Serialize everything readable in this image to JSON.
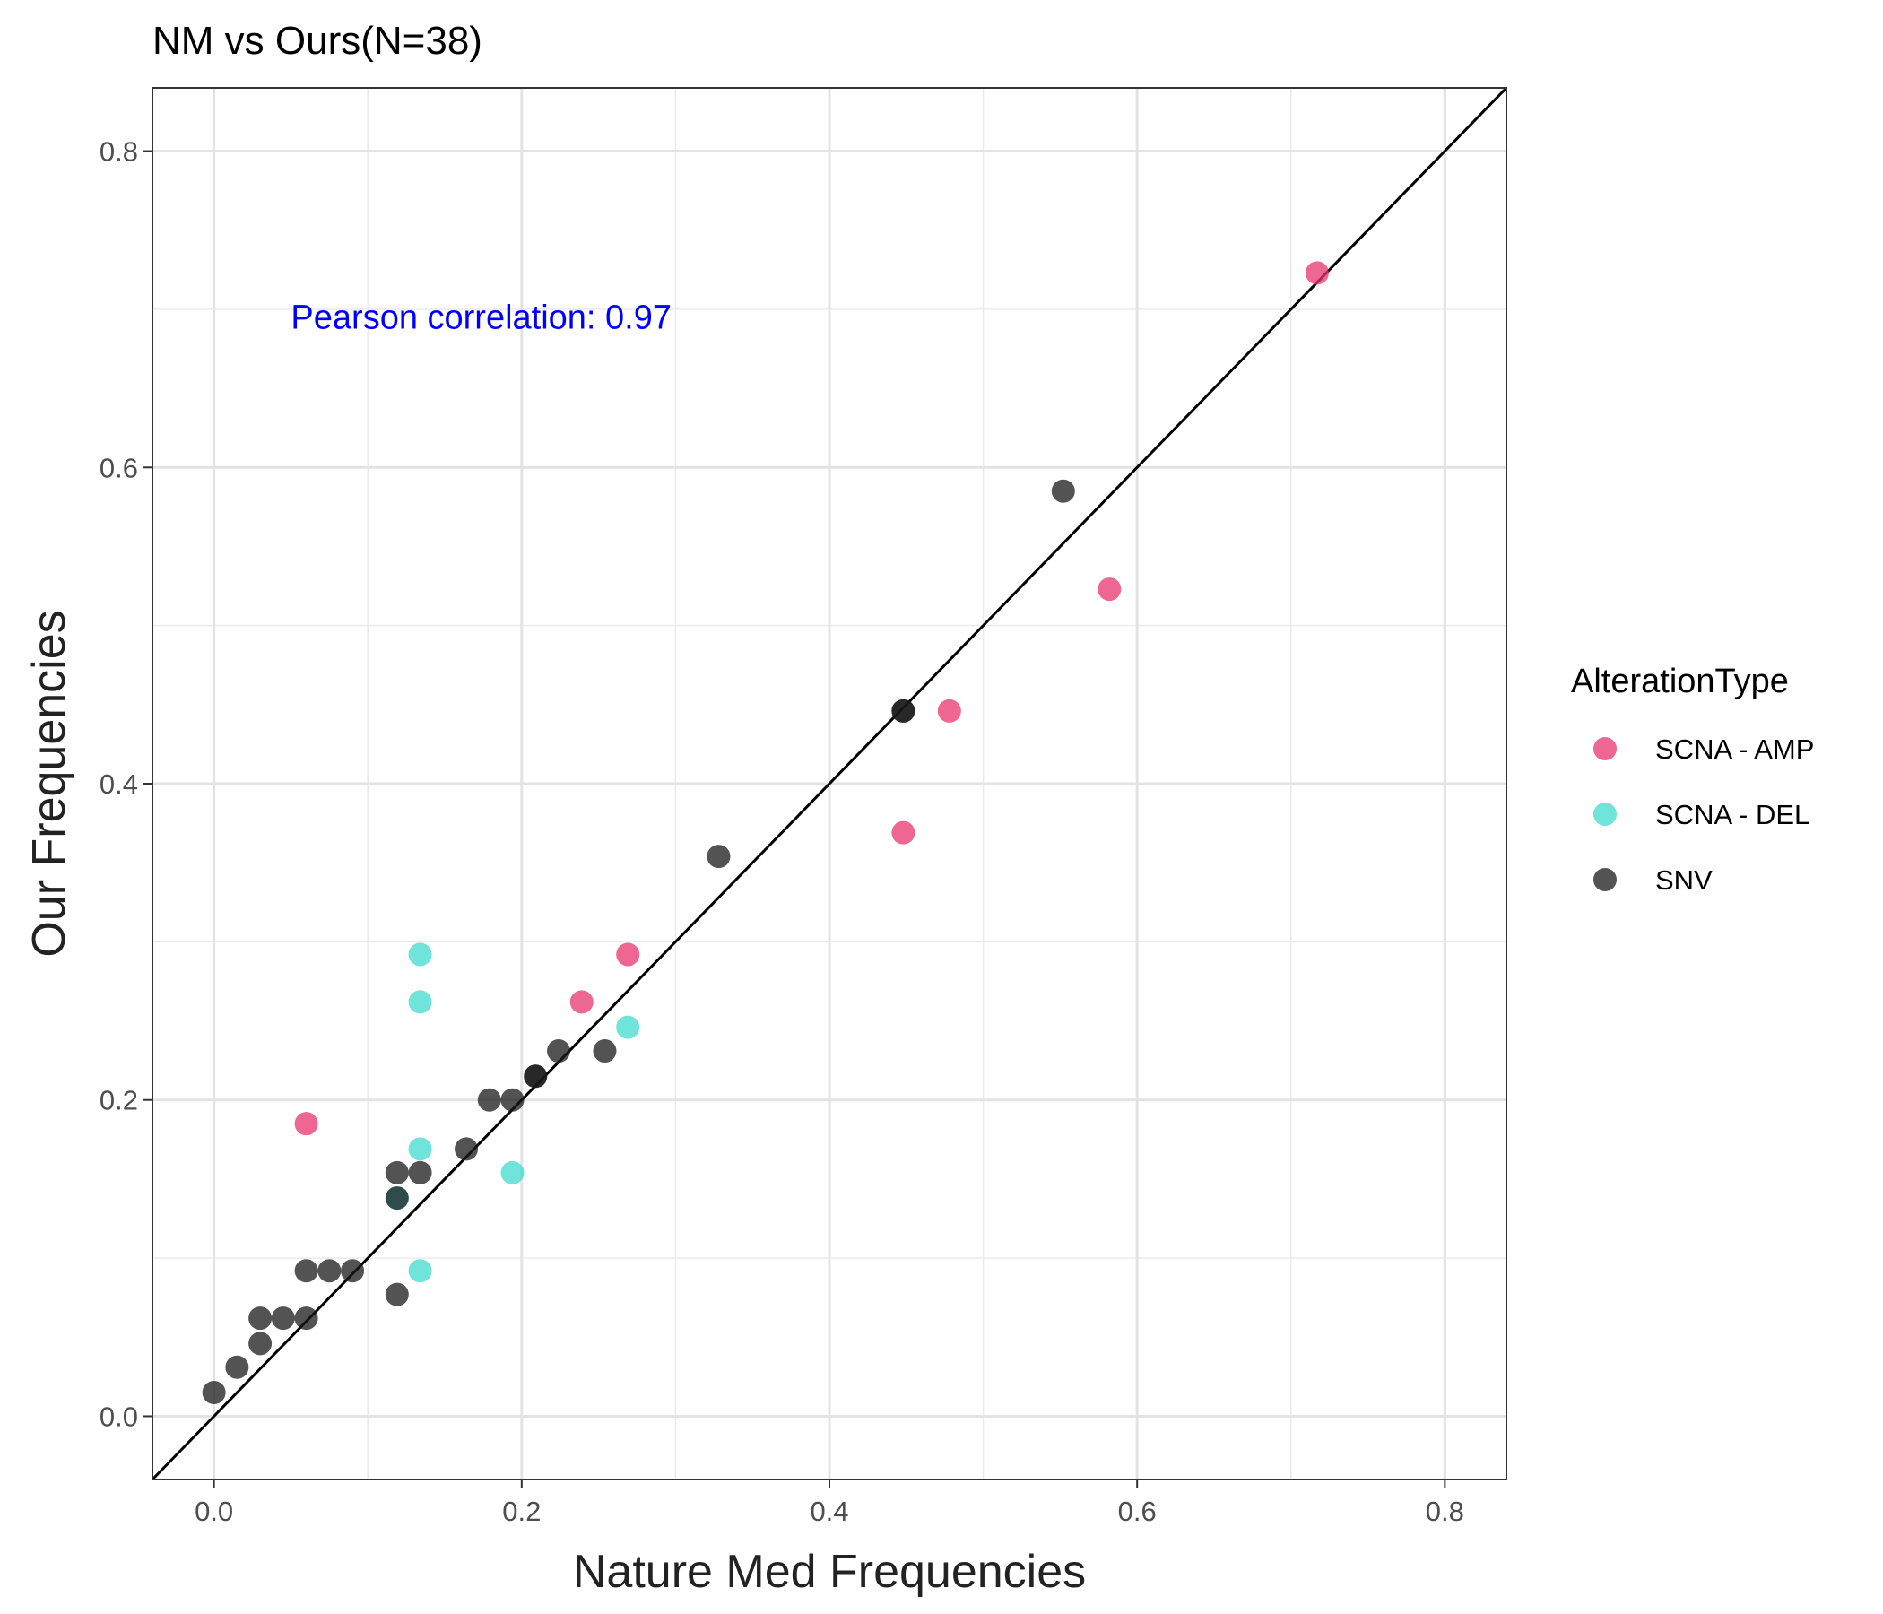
{
  "chart_data": {
    "type": "scatter",
    "title": "NM vs Ours(N=38)",
    "xlabel": "Nature Med Frequencies",
    "ylabel": "Our Frequencies",
    "xlim": [
      -0.04,
      0.84
    ],
    "ylim": [
      -0.04,
      0.84
    ],
    "xticks": [
      0.0,
      0.2,
      0.4,
      0.6,
      0.8
    ],
    "xtick_labels": [
      "0.0",
      "0.2",
      "0.4",
      "0.6",
      "0.8"
    ],
    "yticks": [
      0.0,
      0.2,
      0.4,
      0.6,
      0.8
    ],
    "ytick_labels": [
      "0.0",
      "0.2",
      "0.4",
      "0.6",
      "0.8"
    ],
    "grid": true,
    "reference_line": "y = x",
    "annotation": {
      "text": "Pearson correlation: 0.97",
      "x": 0.05,
      "y": 0.695,
      "color": "#0000ff"
    },
    "legend": {
      "title": "AlterationType",
      "placement": "right"
    },
    "series": [
      {
        "name": "SCNA - AMP",
        "color": "#e8336d",
        "points": [
          {
            "x": 0.717,
            "y": 0.723
          },
          {
            "x": 0.582,
            "y": 0.523
          },
          {
            "x": 0.478,
            "y": 0.446
          },
          {
            "x": 0.448,
            "y": 0.369
          },
          {
            "x": 0.269,
            "y": 0.292
          },
          {
            "x": 0.239,
            "y": 0.262
          },
          {
            "x": 0.06,
            "y": 0.185
          }
        ]
      },
      {
        "name": "SCNA - DEL",
        "color": "#40d9cf",
        "points": [
          {
            "x": 0.134,
            "y": 0.292
          },
          {
            "x": 0.134,
            "y": 0.262
          },
          {
            "x": 0.269,
            "y": 0.246
          },
          {
            "x": 0.134,
            "y": 0.169
          },
          {
            "x": 0.194,
            "y": 0.154
          },
          {
            "x": 0.119,
            "y": 0.138
          },
          {
            "x": 0.134,
            "y": 0.092
          }
        ]
      },
      {
        "name": "SNV",
        "color": "#1a1a1a",
        "points": [
          {
            "x": 0.552,
            "y": 0.585
          },
          {
            "x": 0.448,
            "y": 0.446
          },
          {
            "x": 0.448,
            "y": 0.446
          },
          {
            "x": 0.328,
            "y": 0.354
          },
          {
            "x": 0.254,
            "y": 0.231
          },
          {
            "x": 0.224,
            "y": 0.231
          },
          {
            "x": 0.209,
            "y": 0.215
          },
          {
            "x": 0.209,
            "y": 0.215
          },
          {
            "x": 0.194,
            "y": 0.2
          },
          {
            "x": 0.179,
            "y": 0.2
          },
          {
            "x": 0.164,
            "y": 0.169
          },
          {
            "x": 0.134,
            "y": 0.154
          },
          {
            "x": 0.119,
            "y": 0.154
          },
          {
            "x": 0.119,
            "y": 0.138
          },
          {
            "x": 0.119,
            "y": 0.077
          },
          {
            "x": 0.09,
            "y": 0.092
          },
          {
            "x": 0.075,
            "y": 0.092
          },
          {
            "x": 0.06,
            "y": 0.092
          },
          {
            "x": 0.06,
            "y": 0.062
          },
          {
            "x": 0.045,
            "y": 0.062
          },
          {
            "x": 0.03,
            "y": 0.062
          },
          {
            "x": 0.03,
            "y": 0.046
          },
          {
            "x": 0.015,
            "y": 0.031
          },
          {
            "x": 0.0,
            "y": 0.015
          }
        ]
      }
    ]
  }
}
